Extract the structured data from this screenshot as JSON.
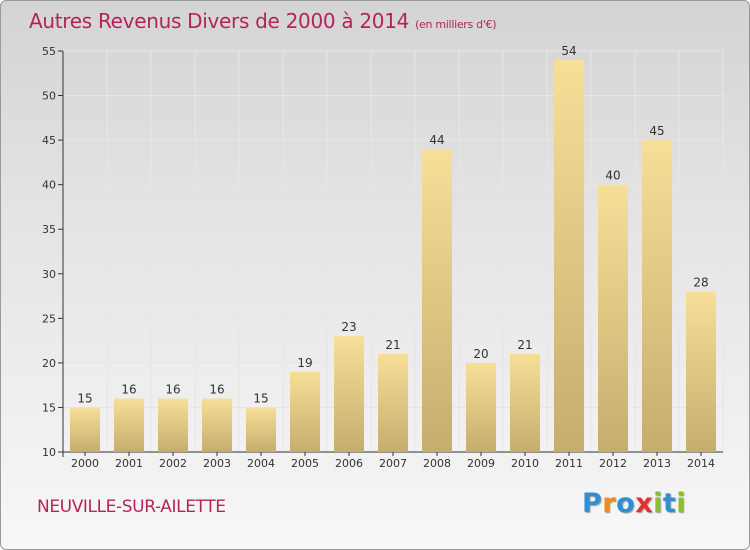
{
  "header": {
    "title": "Autres Revenus Divers de 2000 à 2014",
    "unit": "(en milliers d'€)"
  },
  "footer": {
    "place": "NEUVILLE-SUR-AILETTE",
    "brand": "Proxiti",
    "brand_letters": [
      {
        "ch": "P",
        "color": "#2f8fd0"
      },
      {
        "ch": "r",
        "color": "#f08a1c"
      },
      {
        "ch": "o",
        "color": "#2f8fd0"
      },
      {
        "ch": "x",
        "color": "#e03030"
      },
      {
        "ch": "i",
        "color": "#8cbf2e"
      },
      {
        "ch": "t",
        "color": "#2f8fd0"
      },
      {
        "ch": "i",
        "color": "#8cbf2e"
      }
    ]
  },
  "chart_data": {
    "type": "bar",
    "categories": [
      "2000",
      "2001",
      "2002",
      "2003",
      "2004",
      "2005",
      "2006",
      "2007",
      "2008",
      "2009",
      "2010",
      "2011",
      "2012",
      "2013",
      "2014"
    ],
    "values": [
      15,
      16,
      16,
      16,
      15,
      19,
      23,
      21,
      44,
      20,
      21,
      54,
      40,
      45,
      28
    ],
    "ylim": [
      10,
      55
    ],
    "yticks": [
      10,
      15,
      20,
      25,
      30,
      35,
      40,
      45,
      50,
      55
    ],
    "grid": true,
    "colors": {
      "bar_light": "#f7df98",
      "bar_dark": "#c6ad6e",
      "text": "#b3245c",
      "axis": "#333333"
    }
  }
}
